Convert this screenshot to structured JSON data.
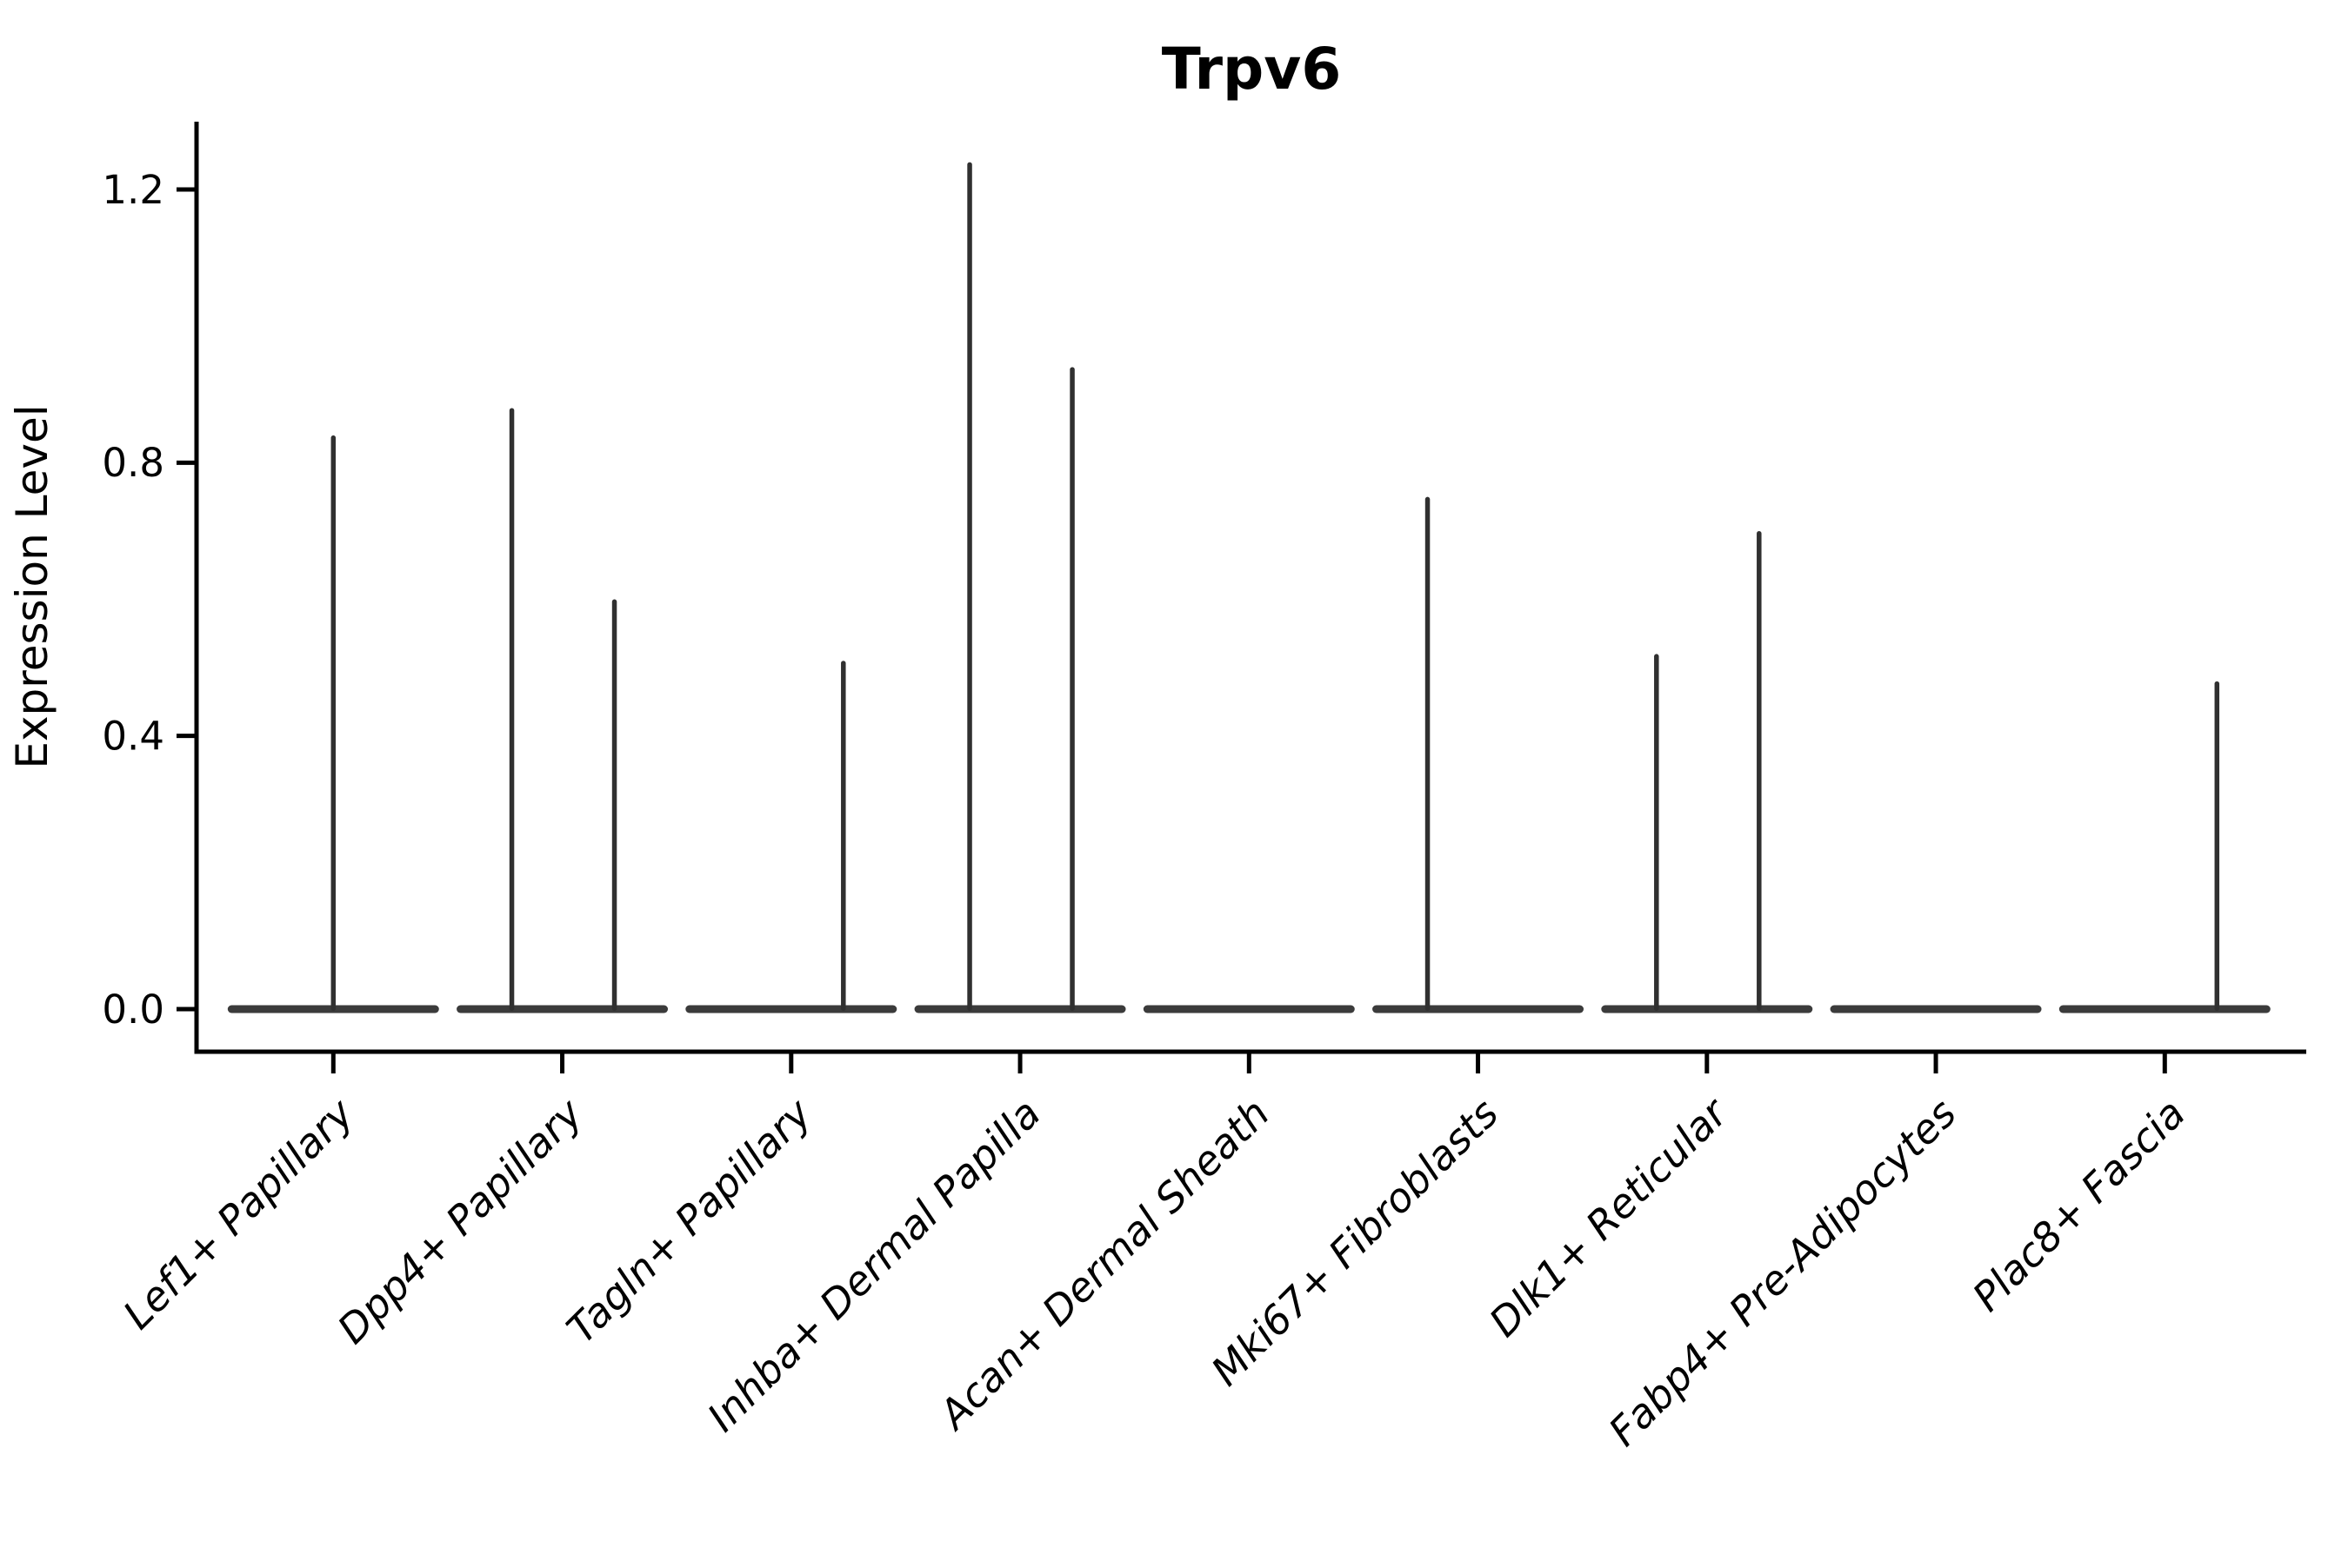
{
  "figure": {
    "background": "#ffffff",
    "title": "Trpv6"
  },
  "chart_data": {
    "type": "violin",
    "title": "Trpv6",
    "xlabel": "",
    "ylabel": "Expression Level",
    "categories": [
      "Lef1+ Papillary",
      "Dpp4+ Papillary",
      "Tagln+ Papillary",
      "Inhba+ Dermal Papilla",
      "Acan+ Dermal Sheath",
      "Mki67+ Fibroblasts",
      "Dlk1+ Reticular",
      "Fabp4+ Pre-Adipocytes",
      "Plac8+ Fascia"
    ],
    "yticks": [
      0.0,
      0.4,
      0.8,
      1.2
    ],
    "ytick_labels": [
      "0.0",
      "0.4",
      "0.8",
      "1.2"
    ],
    "ylim": [
      -0.07,
      1.3
    ],
    "grid": false,
    "legend": "none",
    "violin_fill_color": "#3b3b3b",
    "spike_color": "#303030",
    "axis_color": "#000000",
    "violins": [
      {
        "label": "Lef1+ Papillary",
        "base_at_zero": true,
        "spikes": [
          {
            "pos": "center",
            "max": 0.84
          }
        ]
      },
      {
        "label": "Dpp4+ Papillary",
        "base_at_zero": true,
        "spikes": [
          {
            "pos": "left",
            "max": 0.88
          },
          {
            "pos": "right",
            "max": 0.6
          }
        ]
      },
      {
        "label": "Tagln+ Papillary",
        "base_at_zero": true,
        "spikes": [
          {
            "pos": "right",
            "max": 0.51
          }
        ]
      },
      {
        "label": "Inhba+ Dermal Papilla",
        "base_at_zero": true,
        "spikes": [
          {
            "pos": "left",
            "max": 1.24
          },
          {
            "pos": "right",
            "max": 0.94
          }
        ]
      },
      {
        "label": "Acan+ Dermal Sheath",
        "base_at_zero": true,
        "spikes": []
      },
      {
        "label": "Mki67+ Fibroblasts",
        "base_at_zero": true,
        "spikes": [
          {
            "pos": "left",
            "max": 0.75
          }
        ]
      },
      {
        "label": "Dlk1+ Reticular",
        "base_at_zero": true,
        "spikes": [
          {
            "pos": "left",
            "max": 0.52
          },
          {
            "pos": "right",
            "max": 0.7
          }
        ]
      },
      {
        "label": "Fabp4+ Pre-Adipocytes",
        "base_at_zero": true,
        "spikes": []
      },
      {
        "label": "Plac8+ Fascia",
        "base_at_zero": true,
        "spikes": [
          {
            "pos": "right",
            "max": 0.48
          }
        ]
      }
    ]
  }
}
